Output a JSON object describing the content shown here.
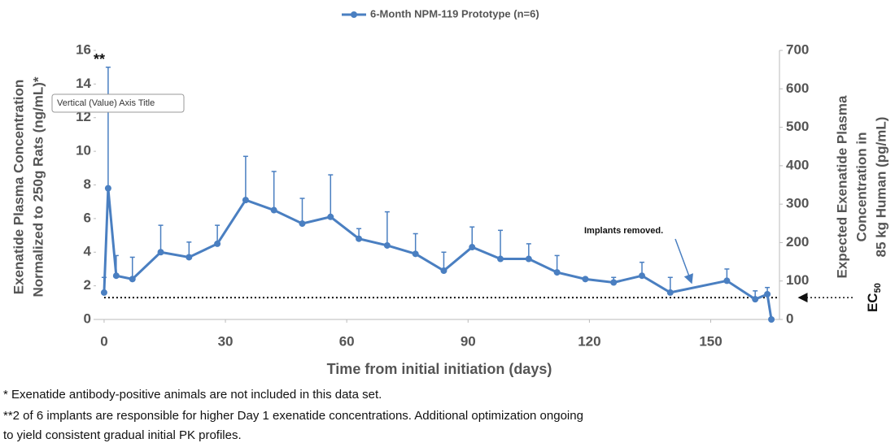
{
  "chart_data": {
    "type": "line",
    "legend": "6-Month NPM-119 Prototype (n=6)",
    "x_label": "Time from initial initiation (days)",
    "y_label": [
      "Exenatide Plasma Concentration",
      "Normalized to 250g Rats (ng/mL)*"
    ],
    "y2_label": [
      "Expected Exenatide Plasma",
      "Concentration in",
      "85 kg Human (pg/mL)"
    ],
    "tooltip": "Vertical (Value) Axis Title",
    "annotation": "Implants removed.",
    "marker_note": "**",
    "ec50": {
      "value": 1.3,
      "label": "EC",
      "subscript": "50"
    },
    "xlim": [
      -2,
      167
    ],
    "xticks": [
      0,
      30,
      60,
      90,
      120,
      150
    ],
    "ylim": [
      0,
      16
    ],
    "yticks": [
      0,
      2,
      4,
      6,
      8,
      10,
      12,
      14,
      16
    ],
    "y2lim": [
      0,
      700
    ],
    "y2ticks": [
      0,
      100,
      200,
      300,
      400,
      500,
      600,
      700
    ],
    "series": [
      {
        "name": "6-Month NPM-119 Prototype (n=6)",
        "color": "#4a7fc1",
        "x": [
          0,
          1,
          3,
          7,
          14,
          21,
          28,
          35,
          42,
          49,
          56,
          63,
          70,
          77,
          84,
          91,
          98,
          105,
          112,
          119,
          126,
          133,
          140,
          154,
          161,
          164,
          165
        ],
        "values": [
          1.6,
          7.8,
          2.6,
          2.4,
          4.0,
          3.7,
          4.5,
          7.1,
          6.5,
          5.7,
          6.1,
          4.8,
          4.4,
          3.9,
          2.9,
          4.3,
          3.6,
          3.6,
          2.8,
          2.4,
          2.2,
          2.6,
          1.6,
          2.3,
          1.2,
          1.5,
          0
        ],
        "errors": [
          0.9,
          7.2,
          1.2,
          1.3,
          1.6,
          0.9,
          1.1,
          2.6,
          2.3,
          1.5,
          2.5,
          0.6,
          2.0,
          1.2,
          1.1,
          1.2,
          1.7,
          0.9,
          1.0,
          0.1,
          0.3,
          0.8,
          0.9,
          0.7,
          0.5,
          0.4,
          null
        ]
      }
    ],
    "footnotes": [
      "*  Exenatide antibody-positive animals are not included in this data set.",
      "**2 of 6 implants are responsible for higher Day 1 exenatide concentrations.  Additional optimization ongoing",
      "to yield consistent gradual initial PK profiles."
    ]
  }
}
